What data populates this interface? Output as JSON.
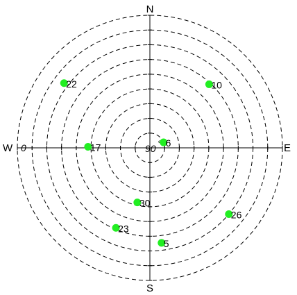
{
  "compass": {
    "north": "N",
    "south": "S",
    "east": "E",
    "west": "W"
  },
  "elevation_labels": {
    "horizon": "0",
    "zenith": "90"
  },
  "colors": {
    "satellite": "#22ee22",
    "grid": "#000000",
    "background": "#ffffff"
  },
  "chart_data": {
    "type": "scatter",
    "projection": "polar",
    "theta_unit": "azimuth_deg",
    "r_unit": "elevation_deg",
    "r_range": [
      0,
      90
    ],
    "ring_count": 9,
    "grid": true,
    "series": [
      {
        "points": [
          {
            "label": "6",
            "azimuth": 68,
            "elevation": 80
          },
          {
            "label": "10",
            "azimuth": 43,
            "elevation": 31
          },
          {
            "label": "22",
            "azimuth": 307,
            "elevation": 17
          },
          {
            "label": "17",
            "azimuth": 271,
            "elevation": 48
          },
          {
            "label": "30",
            "azimuth": 193,
            "elevation": 52
          },
          {
            "label": "26",
            "azimuth": 130,
            "elevation": 20
          },
          {
            "label": "23",
            "azimuth": 203,
            "elevation": 31
          },
          {
            "label": "5",
            "azimuth": 173,
            "elevation": 25
          }
        ]
      }
    ]
  }
}
